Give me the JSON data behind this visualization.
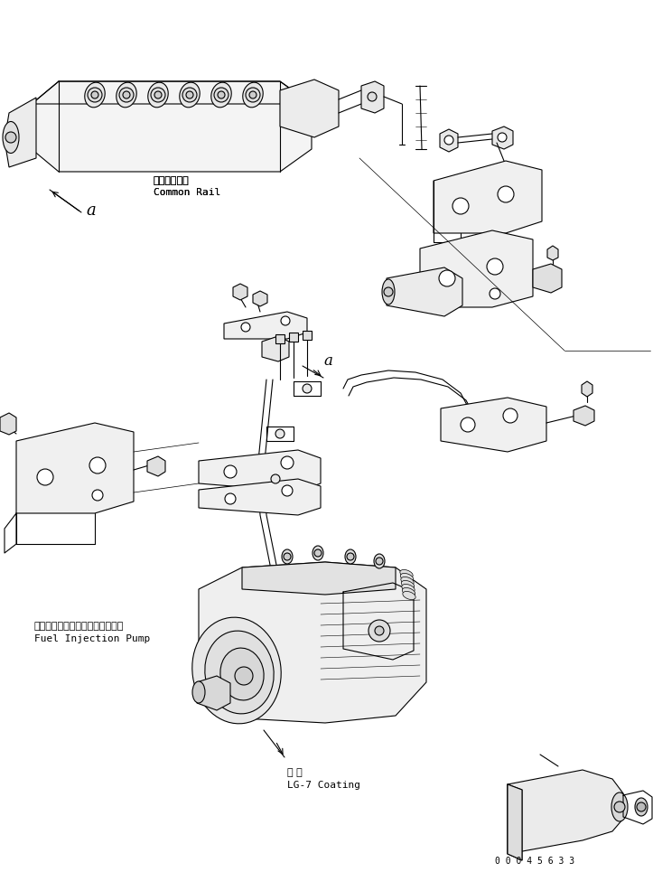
{
  "background_color": "#ffffff",
  "line_color": "#000000",
  "fig_width": 7.23,
  "fig_height": 9.65,
  "dpi": 100,
  "labels": {
    "common_rail_jp": "コモンレール",
    "common_rail_en": "Common Rail",
    "fuel_pump_jp": "フェエルインジェクションポンプ",
    "fuel_pump_en": "Fuel Injection Pump",
    "coating_jp": "塗 布",
    "coating_en": "LG-7 Coating",
    "part_num": "0 0 0 4 5 6 3 3",
    "label_a1": "a",
    "label_a2": "a"
  }
}
